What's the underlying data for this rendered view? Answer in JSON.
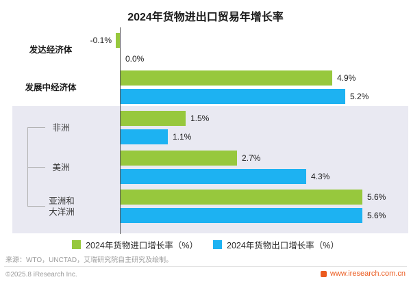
{
  "title": "2024年货物进出口贸易年增长率",
  "legend": [
    {
      "id": "import",
      "label": "2024年货物进口增长率（%）",
      "color": "#97c83d"
    },
    {
      "id": "export",
      "label": "2024年货物出口增长率（%）",
      "color": "#1db2f2"
    }
  ],
  "footer": {
    "source": "来源：WTO，UNCTAD，艾瑞研究院自主研究及绘制。",
    "copyright": "©2025.8 iResearch Inc.",
    "website": "www.iresearch.com.cn"
  },
  "chart_data": {
    "type": "bar",
    "orientation": "horizontal",
    "title": "2024年货物进出口贸易年增长率",
    "categories": [
      "发达经济体",
      "发展中经济体",
      "非洲",
      "美洲",
      "亚洲和大洋洲"
    ],
    "series": [
      {
        "name": "2024年货物进口增长率（%）",
        "color": "#97c83d",
        "values": [
          -0.1,
          4.9,
          1.5,
          2.7,
          5.6
        ]
      },
      {
        "name": "2024年货物出口增长率（%）",
        "color": "#1db2f2",
        "values": [
          0.0,
          5.2,
          1.1,
          4.3,
          5.6
        ]
      }
    ],
    "value_suffix": "%",
    "xlim": [
      -0.5,
      6.3
    ],
    "highlighted_categories": [
      "非洲",
      "美洲",
      "亚洲和大洋洲"
    ],
    "legend_position": "bottom",
    "grid": false
  }
}
